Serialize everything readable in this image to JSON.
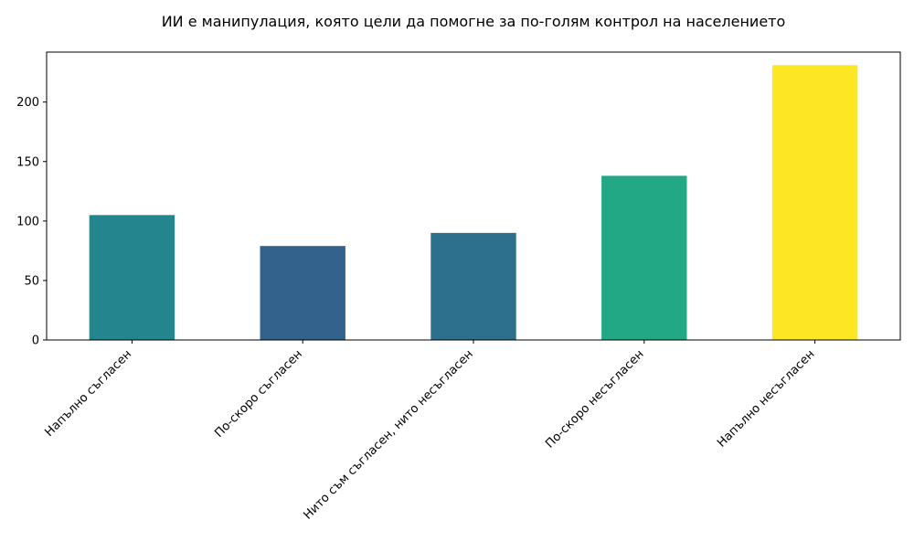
{
  "chart_data": {
    "type": "bar",
    "title": "ИИ е манипулация, която цели да помогне за по-голям контрол на населението",
    "xlabel": "",
    "ylabel": "",
    "categories": [
      "Напълно съгласен",
      "По-скоро съгласен",
      "Нито съм съгласен, нито несъгласен",
      "По-скоро несъгласен",
      "Напълно несъгласен"
    ],
    "values": [
      105,
      79,
      90,
      138,
      231
    ],
    "colors": [
      "#25858e",
      "#33638d",
      "#2d708e",
      "#22a884",
      "#fde725"
    ],
    "ylim": [
      0,
      242
    ],
    "yticks": [
      0,
      50,
      100,
      150,
      200
    ],
    "grid": false,
    "legend": "none"
  }
}
